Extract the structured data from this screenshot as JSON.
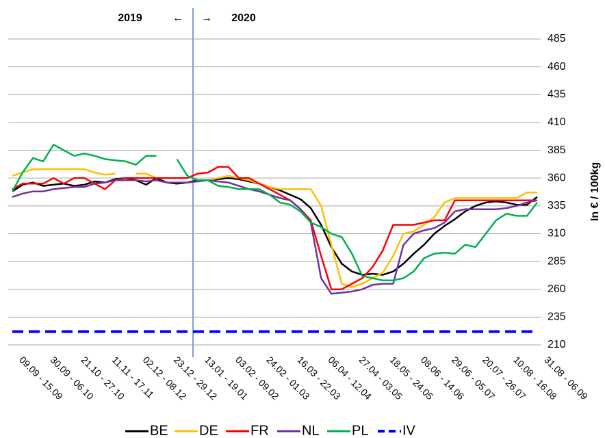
{
  "chart_data": {
    "type": "line",
    "annotations": [
      "2019",
      "←",
      "→",
      "2020"
    ],
    "ylabel": "In € / 100kg",
    "categories": [
      "09.09 - 15.09",
      null,
      null,
      "30.09 - 06.10",
      null,
      null,
      "21.10 - 27.10",
      null,
      null,
      "11.11 - 17.11",
      null,
      null,
      "02.12 - 08.12",
      null,
      null,
      "23.12 - 29.12",
      null,
      null,
      "13.01 - 19.01",
      null,
      null,
      "03.02 - 09.02",
      null,
      null,
      "24.02 - 01.03",
      null,
      null,
      "16.03 - 22.03",
      null,
      null,
      "06.04 - 12.04",
      null,
      null,
      "27.04 - 03.05",
      null,
      null,
      "18.05 - 24.05",
      null,
      null,
      "08.06 - 14.06",
      null,
      null,
      "29.06 - 05.07",
      null,
      null,
      "20.07 - 26.07",
      null,
      null,
      "10.08 - 16.08",
      null,
      null,
      "31.08 - 06.09"
    ],
    "series": [
      {
        "name": "BE",
        "color": "#000000",
        "values": [
          348,
          354,
          356,
          353,
          354,
          355,
          353,
          354,
          357,
          356,
          359,
          360,
          358,
          354,
          360,
          356,
          355,
          356,
          358,
          358,
          359,
          360,
          359,
          357,
          355,
          352,
          349,
          345,
          341,
          333,
          318,
          298,
          283,
          276,
          273,
          274,
          273,
          276,
          283,
          292,
          300,
          310,
          317,
          323,
          330,
          335,
          338,
          339,
          338,
          336,
          336,
          343
        ]
      },
      {
        "name": "DE",
        "color": "#ffc000",
        "values": [
          362,
          365,
          368,
          368,
          368,
          368,
          368,
          368,
          365,
          363,
          364,
          null,
          364,
          364,
          360,
          null,
          null,
          null,
          358,
          358,
          360,
          362,
          360,
          358,
          355,
          352,
          350,
          350,
          350,
          350,
          335,
          300,
          265,
          262,
          265,
          270,
          275,
          290,
          310,
          312,
          318,
          325,
          338,
          342,
          342,
          342,
          342,
          342,
          342,
          342,
          347,
          347
        ]
      },
      {
        "name": "FR",
        "color": "#ff0000",
        "values": [
          350,
          355,
          355,
          355,
          360,
          355,
          360,
          360,
          355,
          350,
          358,
          360,
          360,
          360,
          360,
          360,
          360,
          360,
          364,
          365,
          370,
          370,
          360,
          360,
          355,
          350,
          345,
          340,
          332,
          322,
          290,
          260,
          260,
          265,
          270,
          280,
          295,
          318,
          318,
          318,
          320,
          322,
          322,
          340,
          340,
          340,
          340,
          340,
          340,
          340,
          340,
          340
        ]
      },
      {
        "name": "NL",
        "color": "#7030a0",
        "values": [
          343,
          346,
          348,
          348,
          350,
          351,
          352,
          352,
          355,
          356,
          358,
          358,
          358,
          357,
          358,
          356,
          356,
          356,
          357,
          358,
          357,
          356,
          353,
          350,
          348,
          345,
          342,
          340,
          332,
          320,
          270,
          256,
          257,
          258,
          260,
          264,
          265,
          265,
          300,
          310,
          313,
          315,
          320,
          330,
          332,
          332,
          332,
          332,
          333,
          335,
          338,
          340
        ]
      },
      {
        "name": "PL",
        "color": "#00b050",
        "values": [
          348,
          365,
          378,
          375,
          390,
          385,
          380,
          382,
          380,
          377,
          376,
          375,
          372,
          380,
          380,
          null,
          377,
          362,
          358,
          358,
          353,
          352,
          350,
          350,
          350,
          345,
          338,
          336,
          330,
          320,
          316,
          310,
          307,
          292,
          272,
          270,
          268,
          268,
          270,
          276,
          288,
          292,
          293,
          292,
          300,
          298,
          310,
          322,
          328,
          326,
          326,
          338
        ]
      },
      {
        "name": "IV",
        "color": "#0000ff",
        "dashed": true,
        "values": [
          222,
          222,
          222,
          222,
          222,
          222,
          222,
          222,
          222,
          222,
          222,
          222,
          222,
          222,
          222,
          222,
          222,
          222,
          222,
          222,
          222,
          222,
          222,
          222,
          222,
          222,
          222,
          222,
          222,
          222,
          222,
          222,
          222,
          222,
          222,
          222,
          222,
          222,
          222,
          222,
          222,
          222,
          222,
          222,
          222,
          222,
          222,
          222,
          222,
          222,
          222,
          222
        ]
      }
    ],
    "ylim": [
      210,
      485
    ],
    "yticks": [
      210,
      235,
      260,
      285,
      310,
      335,
      360,
      385,
      410,
      435,
      460,
      485
    ],
    "grid": true,
    "legend": "bottom"
  }
}
